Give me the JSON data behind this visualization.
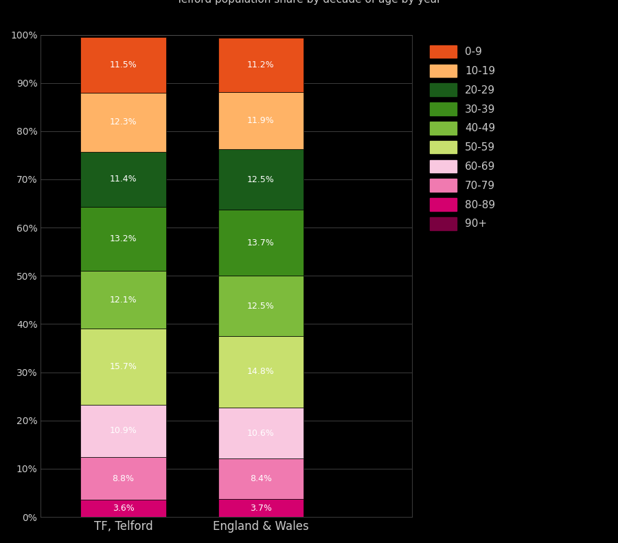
{
  "categories": [
    "TF, Telford",
    "England & Wales"
  ],
  "colors": {
    "0-9": "#e8501a",
    "10-19": "#ffb366",
    "20-29": "#1a5c1a",
    "30-39": "#3d8c1a",
    "40-49": "#7dbb3c",
    "50-59": "#c8e06e",
    "60-69": "#f9c8e0",
    "70-79": "#f07ab0",
    "80-89": "#d4006e",
    "90+": "#7a0040"
  },
  "stack_order": [
    "80-89",
    "70-79",
    "60-69",
    "50-59",
    "40-49",
    "30-39",
    "20-29",
    "10-19",
    "0-9"
  ],
  "values": {
    "TF, Telford": [
      3.6,
      8.8,
      10.9,
      15.7,
      12.1,
      13.2,
      11.4,
      12.3,
      11.5
    ],
    "England & Wales": [
      3.7,
      8.4,
      10.6,
      14.8,
      12.5,
      13.7,
      12.5,
      11.9,
      11.2
    ]
  },
  "legend_order": [
    "0-9",
    "10-19",
    "20-29",
    "30-39",
    "40-49",
    "50-59",
    "60-69",
    "70-79",
    "80-89",
    "90+"
  ],
  "background_color": "#000000",
  "text_color": "#cccccc",
  "yticks": [
    0,
    10,
    20,
    30,
    40,
    50,
    60,
    70,
    80,
    90,
    100
  ],
  "bar_width": 0.62,
  "figsize": [
    9.0,
    7.9
  ],
  "dpi": 100
}
